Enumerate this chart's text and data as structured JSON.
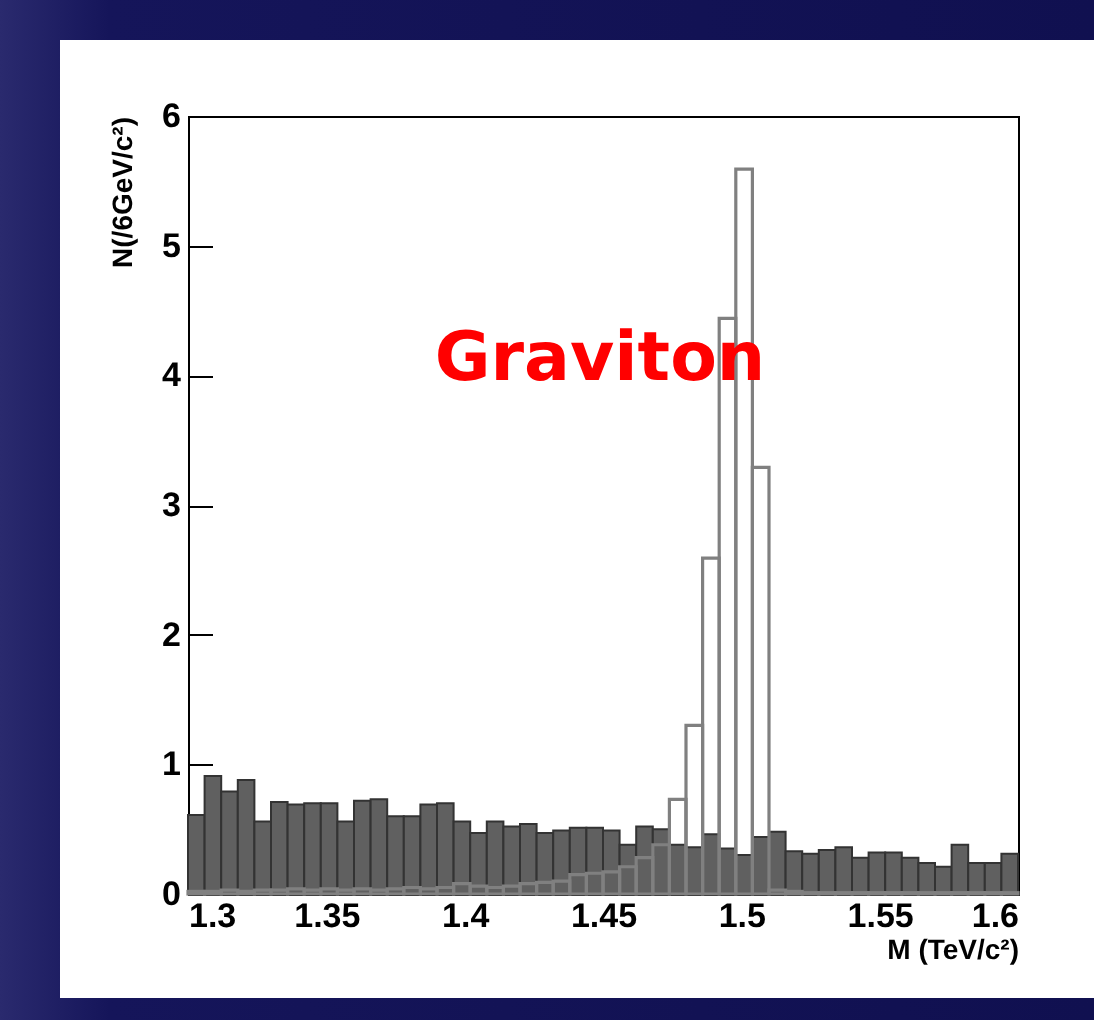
{
  "chart_data": {
    "type": "histogram",
    "xlabel": "M (TeV/c²)",
    "ylabel": "N(/6GeV/c²)",
    "annotations": [
      "Graviton"
    ],
    "bins": [
      1.3,
      1.306,
      1.312,
      1.318,
      1.324,
      1.33,
      1.336,
      1.342,
      1.348,
      1.354,
      1.36,
      1.366,
      1.372,
      1.378,
      1.384,
      1.39,
      1.396,
      1.402,
      1.408,
      1.414,
      1.42,
      1.426,
      1.432,
      1.438,
      1.444,
      1.45,
      1.456,
      1.462,
      1.468,
      1.474,
      1.48,
      1.486,
      1.492,
      1.498,
      1.504,
      1.51,
      1.516,
      1.522,
      1.528,
      1.534,
      1.54,
      1.546,
      1.552,
      1.558,
      1.564,
      1.57,
      1.576,
      1.582,
      1.588,
      1.594,
      1.6
    ],
    "series": [
      {
        "color": "#606060",
        "values": [
          0.61,
          0.91,
          0.79,
          0.88,
          0.56,
          0.71,
          0.69,
          0.7,
          0.7,
          0.56,
          0.72,
          0.73,
          0.6,
          0.6,
          0.69,
          0.7,
          0.56,
          0.47,
          0.56,
          0.52,
          0.54,
          0.47,
          0.49,
          0.51,
          0.51,
          0.49,
          0.38,
          0.52,
          0.5,
          0.38,
          0.36,
          0.46,
          0.35,
          0.3,
          0.44,
          0.48,
          0.33,
          0.31,
          0.34,
          0.36,
          0.28,
          0.32,
          0.32,
          0.28,
          0.24,
          0.21,
          0.38,
          0.24,
          0.24,
          0.31
        ]
      },
      {
        "color": "#808080",
        "values": [
          0.02,
          0.02,
          0.03,
          0.02,
          0.03,
          0.03,
          0.04,
          0.03,
          0.04,
          0.03,
          0.04,
          0.03,
          0.04,
          0.05,
          0.04,
          0.05,
          0.08,
          0.06,
          0.05,
          0.06,
          0.08,
          0.09,
          0.1,
          0.15,
          0.16,
          0.17,
          0.21,
          0.28,
          0.38,
          0.73,
          1.3,
          2.59,
          4.44,
          5.59,
          3.29,
          0.03,
          0.02,
          0.01,
          0.01,
          0.01,
          0.01,
          0.01,
          0.01,
          0.01,
          0.01,
          0.01,
          0.01,
          0.01,
          0.01,
          0.01
        ]
      }
    ],
    "xlim": [
      1.3,
      1.6
    ],
    "xticks": [
      1.3,
      1.35,
      1.4,
      1.45,
      1.5,
      1.55,
      1.6
    ],
    "ylim": [
      0,
      6
    ],
    "yticks": [
      0,
      1,
      2,
      3,
      4,
      5,
      6
    ],
    "grid": false
  }
}
